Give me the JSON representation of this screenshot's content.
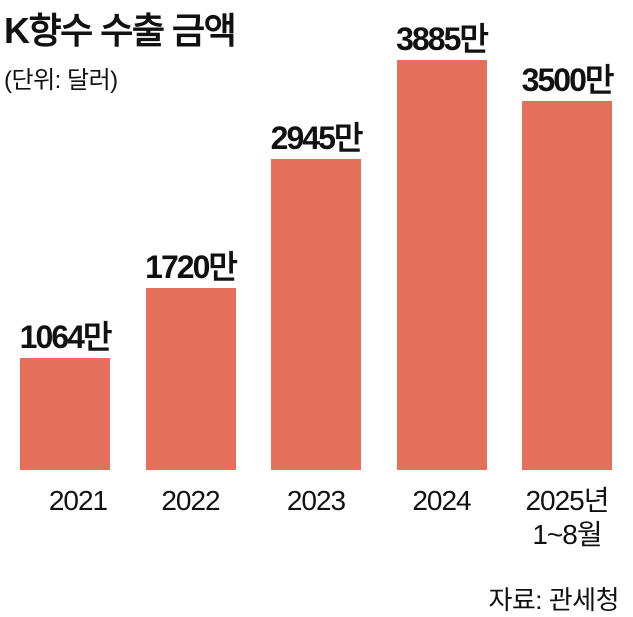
{
  "chart_data": {
    "type": "bar",
    "title": "K향수 수출 금액",
    "subtitle": "(단위: 달러)",
    "categories": [
      "2021",
      "2022",
      "2023",
      "2024",
      "2025년 1~8월"
    ],
    "values": [
      1064,
      1720,
      2945,
      3885,
      3500
    ],
    "value_labels": [
      "1064만",
      "1720만",
      "2945만",
      "3885만",
      "3500만"
    ],
    "color": "#e46f5a",
    "source": "자료: 관세청"
  }
}
